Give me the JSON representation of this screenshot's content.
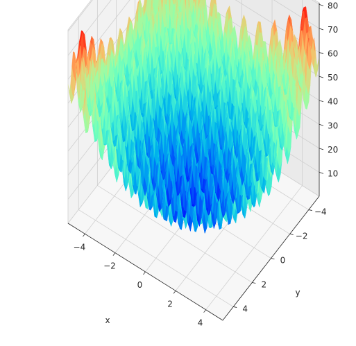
{
  "chart_data": {
    "type": "surface3d",
    "title": "",
    "xlabel": "x",
    "ylabel": "y",
    "zlabel": "",
    "x_ticks": [
      -4,
      -2,
      0,
      2,
      4
    ],
    "y_ticks": [
      -4,
      -2,
      0,
      2,
      4
    ],
    "z_ticks": [
      10,
      20,
      30,
      40,
      50,
      60,
      70,
      80
    ],
    "xlim": [
      -5.12,
      5.12
    ],
    "ylim": [
      -5.12,
      5.12
    ],
    "zlim": [
      0,
      80.7
    ],
    "function": "rastrigin",
    "colormap": "rainbow",
    "grid": true
  }
}
